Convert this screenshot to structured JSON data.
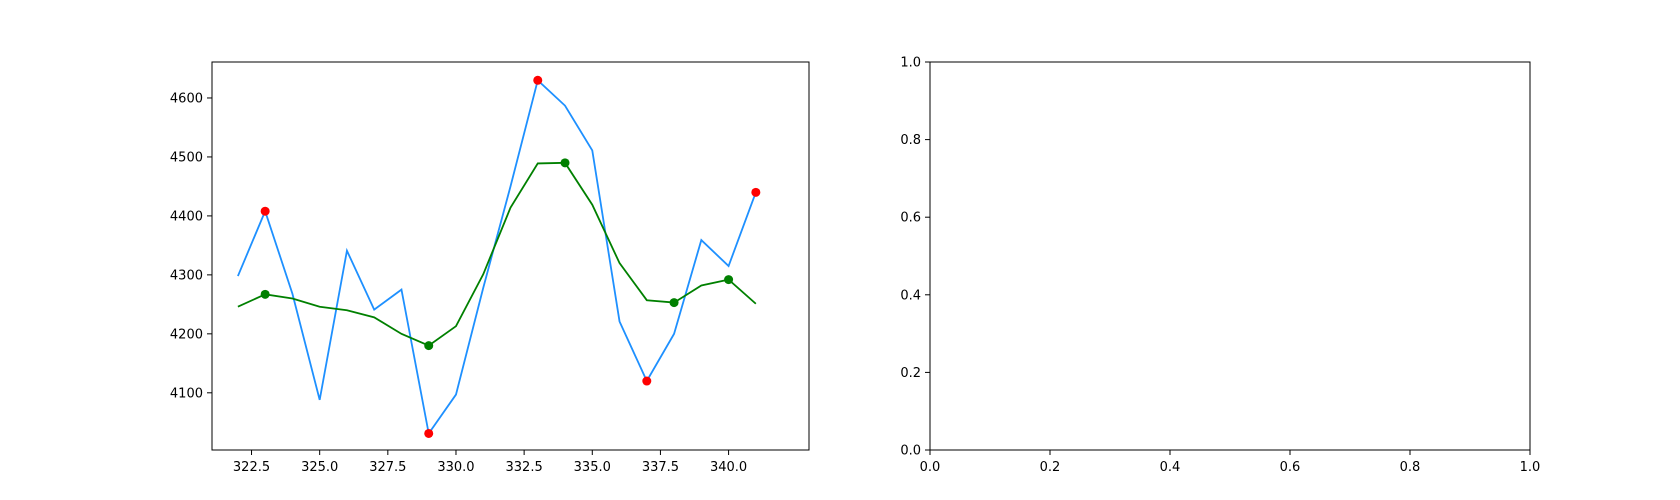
{
  "chart_data": [
    {
      "type": "line",
      "title": "",
      "xlabel": "",
      "ylabel": "",
      "xlim": [
        321.05,
        342.95
      ],
      "ylim": [
        4003,
        4661
      ],
      "xticks": [
        322.5,
        325.0,
        327.5,
        330.0,
        332.5,
        335.0,
        337.5,
        340.0
      ],
      "xtick_labels": [
        "322.5",
        "325.0",
        "327.5",
        "330.0",
        "332.5",
        "335.0",
        "337.5",
        "340.0"
      ],
      "yticks": [
        4100,
        4200,
        4300,
        4400,
        4500,
        4600
      ],
      "ytick_labels": [
        "4100",
        "4200",
        "4300",
        "4400",
        "4500",
        "4600"
      ],
      "grid": false,
      "legend": "none",
      "series": [
        {
          "kind": "line",
          "color": "#1e90ff",
          "x": [
            322,
            323,
            324,
            325,
            326,
            327,
            328,
            329,
            330,
            331,
            332,
            333,
            334,
            335,
            336,
            337,
            338,
            339,
            340,
            341
          ],
          "y": [
            4298,
            4408,
            4268,
            4088,
            4341,
            4241,
            4275,
            4031,
            4097,
            4278,
            4450,
            4630,
            4587,
            4511,
            4221,
            4120,
            4200,
            4359,
            4315,
            4440
          ]
        },
        {
          "kind": "line",
          "color": "#008000",
          "x": [
            322,
            323,
            324,
            325,
            326,
            327,
            328,
            329,
            330,
            331,
            332,
            333,
            334,
            335,
            336,
            337,
            338,
            339,
            340,
            341
          ],
          "y": [
            4246,
            4267,
            4260,
            4246,
            4240,
            4228,
            4200,
            4180,
            4213,
            4301,
            4414,
            4489,
            4490,
            4419,
            4320,
            4257,
            4253,
            4282,
            4292,
            4251
          ]
        },
        {
          "kind": "scatter",
          "color": "#ff0000",
          "x": [
            323,
            329,
            333,
            337,
            341
          ],
          "y": [
            4408,
            4031,
            4630,
            4120,
            4440
          ]
        },
        {
          "kind": "scatter",
          "color": "#008000",
          "x": [
            323,
            329,
            334,
            338,
            340
          ],
          "y": [
            4267,
            4180,
            4490,
            4253,
            4292
          ]
        }
      ]
    },
    {
      "type": "line",
      "title": "",
      "xlabel": "",
      "ylabel": "",
      "xlim": [
        0,
        1
      ],
      "ylim": [
        0,
        1
      ],
      "xticks": [
        0,
        0.2,
        0.4,
        0.6,
        0.8,
        1.0
      ],
      "xtick_labels": [
        "0.0",
        "0.2",
        "0.4",
        "0.6",
        "0.8",
        "1.0"
      ],
      "yticks": [
        0,
        0.2,
        0.4,
        0.6,
        0.8,
        1.0
      ],
      "ytick_labels": [
        "0.0",
        "0.2",
        "0.4",
        "0.6",
        "0.8",
        "1.0"
      ],
      "grid": false,
      "legend": "none",
      "series": []
    }
  ]
}
